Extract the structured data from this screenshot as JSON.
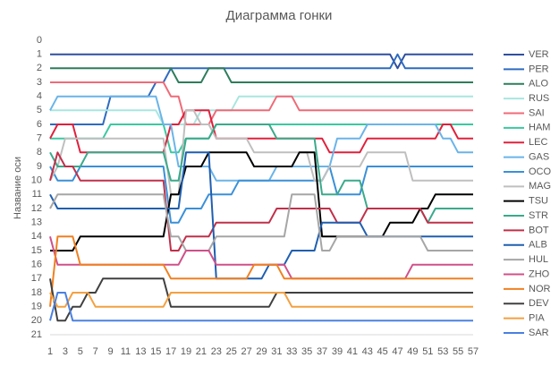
{
  "chart_data": {
    "type": "line",
    "title": "Диаграмма гонки",
    "y_label": "Название оси",
    "categories": [
      "1",
      null,
      "3",
      null,
      "5",
      null,
      "7",
      null,
      "9",
      null,
      "11",
      null,
      "13",
      null,
      "15",
      null,
      "17",
      null,
      "19",
      null,
      "21",
      null,
      "23",
      null,
      "25",
      null,
      "27",
      null,
      "29",
      null,
      "31",
      null,
      "33",
      null,
      "35",
      null,
      "37",
      null,
      "39",
      null,
      "41",
      null,
      "43",
      null,
      "45",
      null,
      "47",
      null,
      "49",
      null,
      "51",
      null,
      "53",
      null,
      "55",
      null,
      "57"
    ],
    "ylim": [
      0,
      21
    ],
    "yticks": [
      0,
      1,
      2,
      3,
      4,
      5,
      6,
      7,
      8,
      9,
      10,
      11,
      12,
      13,
      14,
      15,
      16,
      17,
      18,
      19,
      20,
      21
    ],
    "y_reversed": true,
    "grid": false,
    "legend": "right",
    "series": [
      {
        "name": "VER",
        "color": "#2f4fa0",
        "values": [
          1,
          1,
          1,
          1,
          1,
          1,
          1,
          1,
          1,
          1,
          1,
          1,
          1,
          1,
          1,
          1,
          1,
          1,
          1,
          1,
          1,
          1,
          1,
          1,
          1,
          1,
          1,
          1,
          1,
          1,
          1,
          1,
          1,
          1,
          1,
          1,
          1,
          1,
          1,
          1,
          1,
          1,
          1,
          1,
          1,
          1,
          2,
          1,
          1,
          1,
          1,
          1,
          1,
          1,
          1,
          1,
          1
        ]
      },
      {
        "name": "PER",
        "color": "#2e6bc0",
        "values": [
          6,
          6,
          6,
          6,
          6,
          6,
          6,
          6,
          4,
          4,
          4,
          4,
          4,
          4,
          3,
          3,
          2,
          2,
          2,
          2,
          2,
          2,
          2,
          2,
          2,
          2,
          2,
          2,
          2,
          2,
          2,
          2,
          2,
          2,
          2,
          2,
          2,
          2,
          2,
          2,
          2,
          2,
          2,
          2,
          2,
          2,
          1,
          2,
          2,
          2,
          2,
          2,
          2,
          2,
          2,
          2,
          2
        ]
      },
      {
        "name": "ALO",
        "color": "#2e7d5b",
        "values": [
          2,
          2,
          2,
          2,
          2,
          2,
          2,
          2,
          2,
          2,
          2,
          2,
          2,
          2,
          2,
          2,
          2,
          3,
          3,
          3,
          3,
          2,
          2,
          2,
          3,
          3,
          3,
          3,
          3,
          3,
          3,
          3,
          3,
          3,
          3,
          3,
          3,
          3,
          3,
          3,
          3,
          3,
          3,
          3,
          3,
          3,
          3,
          3,
          3,
          3,
          3,
          3,
          3,
          3,
          3,
          3,
          3
        ]
      },
      {
        "name": "RUS",
        "color": "#a8e6e0",
        "values": [
          5,
          5,
          5,
          5,
          5,
          5,
          5,
          5,
          5,
          5,
          5,
          5,
          5,
          5,
          5,
          6,
          6,
          6,
          6,
          6,
          5,
          5,
          5,
          5,
          5,
          4,
          4,
          4,
          4,
          4,
          4,
          4,
          4,
          4,
          4,
          4,
          4,
          4,
          4,
          4,
          4,
          4,
          4,
          4,
          4,
          4,
          4,
          4,
          4,
          4,
          4,
          4,
          4,
          4,
          4,
          4,
          4
        ]
      },
      {
        "name": "SAI",
        "color": "#f06a78",
        "values": [
          3,
          3,
          3,
          3,
          3,
          3,
          3,
          3,
          3,
          3,
          3,
          3,
          3,
          3,
          3,
          3,
          4,
          4,
          6,
          6,
          6,
          6,
          5,
          5,
          5,
          5,
          5,
          5,
          5,
          5,
          4,
          4,
          4,
          5,
          5,
          5,
          5,
          5,
          5,
          5,
          5,
          5,
          5,
          5,
          5,
          5,
          5,
          5,
          5,
          5,
          5,
          5,
          5,
          5,
          5,
          5,
          5
        ]
      },
      {
        "name": "HAM",
        "color": "#3cc8a0",
        "values": [
          7,
          7,
          7,
          7,
          7,
          7,
          7,
          7,
          6,
          6,
          6,
          6,
          6,
          6,
          6,
          6,
          8,
          8,
          7,
          7,
          7,
          7,
          6,
          6,
          6,
          6,
          6,
          6,
          6,
          6,
          6,
          6,
          6,
          6,
          6,
          6,
          6,
          6,
          6,
          6,
          6,
          6,
          6,
          6,
          6,
          6,
          6,
          6,
          6,
          6,
          6,
          6,
          6,
          6,
          6,
          6,
          6
        ]
      },
      {
        "name": "LEC",
        "color": "#e0203c",
        "values": [
          7,
          6,
          6,
          6,
          8,
          8,
          8,
          8,
          8,
          8,
          8,
          8,
          8,
          8,
          8,
          8,
          6,
          6,
          5,
          5,
          5,
          5,
          7,
          7,
          7,
          7,
          7,
          7,
          7,
          7,
          7,
          7,
          7,
          7,
          7,
          7,
          7,
          8,
          8,
          8,
          8,
          8,
          7,
          7,
          7,
          7,
          7,
          7,
          7,
          7,
          7,
          7,
          6,
          6,
          7,
          7,
          7
        ]
      },
      {
        "name": "GAS",
        "color": "#6ab4e8",
        "values": [
          5,
          4,
          4,
          4,
          4,
          4,
          4,
          4,
          4,
          4,
          4,
          4,
          4,
          4,
          4,
          6,
          6,
          9,
          9,
          9,
          9,
          9,
          10,
          10,
          10,
          10,
          10,
          10,
          10,
          10,
          9,
          9,
          9,
          9,
          9,
          9,
          9,
          9,
          7,
          7,
          7,
          7,
          6,
          6,
          6,
          6,
          6,
          6,
          6,
          6,
          6,
          6,
          7,
          7,
          8,
          8,
          8
        ]
      },
      {
        "name": "OCO",
        "color": "#3a90d8",
        "values": [
          9,
          10,
          10,
          10,
          9,
          9,
          9,
          9,
          9,
          9,
          9,
          9,
          9,
          9,
          9,
          9,
          13,
          13,
          12,
          12,
          12,
          11,
          11,
          11,
          11,
          10,
          10,
          10,
          10,
          10,
          10,
          10,
          10,
          10,
          10,
          10,
          10,
          9,
          11,
          11,
          11,
          11,
          9,
          9,
          9,
          9,
          9,
          9,
          9,
          9,
          9,
          9,
          9,
          9,
          9,
          9,
          9
        ]
      },
      {
        "name": "MAG",
        "color": "#bfbfbf",
        "values": [
          10,
          9,
          7,
          7,
          7,
          7,
          7,
          7,
          7,
          7,
          7,
          7,
          7,
          7,
          7,
          7,
          11,
          11,
          5,
          5,
          6,
          6,
          7,
          7,
          7,
          7,
          7,
          8,
          8,
          8,
          8,
          8,
          8,
          8,
          8,
          10,
          10,
          9,
          9,
          9,
          9,
          9,
          8,
          8,
          8,
          8,
          8,
          8,
          10,
          10,
          10,
          10,
          10,
          10,
          10,
          10,
          10
        ]
      },
      {
        "name": "TSU",
        "color": "#000000",
        "values": [
          15,
          15,
          15,
          15,
          14,
          14,
          14,
          14,
          14,
          14,
          14,
          14,
          14,
          14,
          14,
          14,
          11,
          11,
          9,
          9,
          9,
          8,
          8,
          8,
          8,
          8,
          8,
          9,
          9,
          9,
          9,
          9,
          9,
          8,
          8,
          8,
          14,
          14,
          14,
          14,
          14,
          14,
          14,
          14,
          14,
          13,
          13,
          13,
          13,
          12,
          12,
          11,
          11,
          11,
          11,
          11,
          11
        ]
      },
      {
        "name": "STR",
        "color": "#3aaa8a",
        "values": [
          8,
          9,
          9,
          9,
          9,
          8,
          8,
          8,
          8,
          8,
          8,
          8,
          8,
          8,
          8,
          8,
          10,
          10,
          7,
          7,
          7,
          7,
          6,
          6,
          6,
          6,
          6,
          6,
          6,
          6,
          7,
          7,
          7,
          7,
          7,
          7,
          11,
          11,
          11,
          10,
          10,
          10,
          12,
          12,
          12,
          12,
          12,
          12,
          12,
          12,
          13,
          12,
          12,
          12,
          12,
          12,
          12
        ]
      },
      {
        "name": "BOT",
        "color": "#c0304a",
        "values": [
          10,
          8,
          9,
          9,
          10,
          10,
          10,
          10,
          10,
          10,
          10,
          10,
          10,
          10,
          10,
          10,
          15,
          15,
          14,
          14,
          14,
          14,
          13,
          13,
          13,
          13,
          13,
          13,
          13,
          13,
          12,
          12,
          12,
          12,
          12,
          12,
          12,
          12,
          13,
          13,
          13,
          13,
          12,
          12,
          12,
          12,
          12,
          12,
          12,
          12,
          13,
          13,
          13,
          13,
          13,
          13,
          13
        ]
      },
      {
        "name": "ALB",
        "color": "#1f5fb0",
        "values": [
          11,
          12,
          12,
          12,
          12,
          12,
          12,
          12,
          12,
          12,
          12,
          12,
          12,
          12,
          12,
          12,
          12,
          12,
          8,
          8,
          8,
          8,
          17,
          17,
          17,
          17,
          17,
          17,
          17,
          16,
          16,
          16,
          15,
          15,
          15,
          15,
          13,
          13,
          13,
          13,
          13,
          13,
          14,
          14,
          14,
          14,
          14,
          14,
          14,
          14,
          14,
          14,
          14,
          14,
          14,
          14,
          14
        ]
      },
      {
        "name": "HUL",
        "color": "#a6a6a6",
        "values": [
          12,
          11,
          11,
          11,
          11,
          11,
          11,
          11,
          11,
          11,
          11,
          11,
          11,
          11,
          11,
          11,
          14,
          14,
          15,
          15,
          15,
          15,
          14,
          14,
          14,
          14,
          14,
          14,
          14,
          14,
          14,
          14,
          11,
          11,
          11,
          11,
          15,
          15,
          14,
          14,
          14,
          14,
          14,
          14,
          14,
          14,
          14,
          14,
          14,
          14,
          15,
          15,
          15,
          15,
          15,
          15,
          15
        ]
      },
      {
        "name": "ZHO",
        "color": "#d0508a",
        "values": [
          14,
          16,
          16,
          16,
          16,
          16,
          16,
          16,
          16,
          16,
          16,
          16,
          16,
          16,
          16,
          16,
          16,
          16,
          15,
          15,
          15,
          15,
          16,
          16,
          16,
          16,
          16,
          16,
          16,
          16,
          16,
          16,
          17,
          17,
          17,
          17,
          17,
          17,
          17,
          17,
          17,
          17,
          17,
          17,
          17,
          17,
          17,
          17,
          16,
          16,
          16,
          16,
          16,
          16,
          16,
          16,
          16
        ]
      },
      {
        "name": "NOR",
        "color": "#f08020",
        "values": [
          19,
          14,
          14,
          14,
          16,
          16,
          16,
          16,
          16,
          16,
          16,
          16,
          16,
          16,
          16,
          16,
          17,
          17,
          17,
          17,
          17,
          17,
          17,
          17,
          17,
          17,
          17,
          16,
          16,
          16,
          16,
          17,
          17,
          17,
          17,
          17,
          17,
          17,
          17,
          17,
          17,
          17,
          17,
          17,
          17,
          17,
          17,
          17,
          17,
          17,
          17,
          17,
          17,
          17,
          17,
          17,
          17
        ]
      },
      {
        "name": "DEV",
        "color": "#404040",
        "values": [
          17,
          20,
          20,
          19,
          19,
          18,
          18,
          17,
          17,
          17,
          17,
          17,
          17,
          17,
          17,
          17,
          19,
          19,
          19,
          19,
          19,
          19,
          19,
          19,
          19,
          19,
          19,
          19,
          19,
          19,
          18,
          18,
          18,
          18,
          18,
          18,
          18,
          18,
          18,
          18,
          18,
          18,
          18,
          18,
          18,
          18,
          18,
          18,
          18,
          18,
          18,
          18,
          18,
          18,
          18,
          18,
          18
        ]
      },
      {
        "name": "PIA",
        "color": "#f4a040",
        "values": [
          18,
          19,
          19,
          18,
          18,
          18,
          19,
          19,
          19,
          19,
          19,
          19,
          19,
          19,
          19,
          19,
          18,
          18,
          18,
          18,
          18,
          18,
          18,
          18,
          18,
          18,
          18,
          18,
          18,
          18,
          18,
          18,
          19,
          19,
          19,
          19,
          19,
          19,
          19,
          19,
          19,
          19,
          19,
          19,
          19,
          19,
          19,
          19,
          19,
          19,
          19,
          19,
          19,
          19,
          19,
          19,
          19
        ]
      },
      {
        "name": "SAR",
        "color": "#4a80e0",
        "values": [
          20,
          18,
          18,
          20,
          20,
          20,
          20,
          20,
          20,
          20,
          20,
          20,
          20,
          20,
          20,
          20,
          20,
          20,
          20,
          20,
          20,
          20,
          20,
          20,
          20,
          20,
          20,
          20,
          20,
          20,
          20,
          20,
          20,
          20,
          20,
          20,
          20,
          20,
          20,
          20,
          20,
          20,
          20,
          20,
          20,
          20,
          20,
          20,
          20,
          20,
          20,
          20,
          20,
          20,
          20,
          20,
          20
        ]
      }
    ]
  }
}
